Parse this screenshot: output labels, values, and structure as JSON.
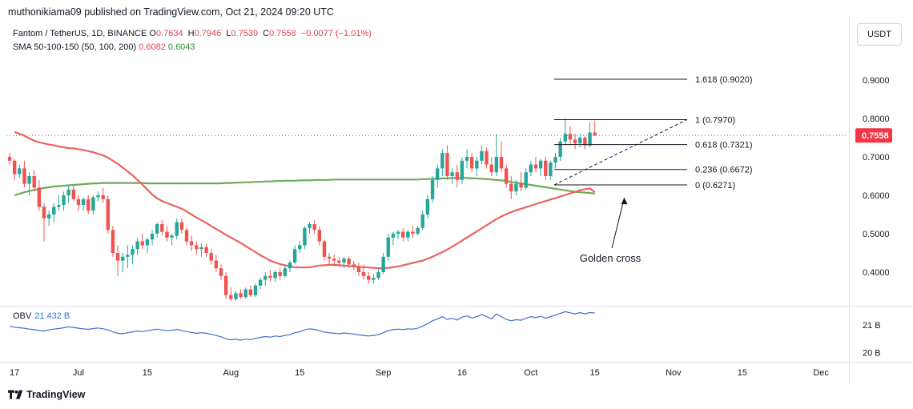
{
  "header": {
    "publisher_text": "muthonikiama09 published on TradingView.com, Oct 21, 2024 09:20 UTC"
  },
  "legend": {
    "symbol": "Fantom / TetherUS, 1D, BINANCE",
    "open_label": "O",
    "open": "0.7634",
    "high_label": "H",
    "high": "0.7946",
    "low_label": "L",
    "low": "0.7539",
    "close_label": "C",
    "close": "0.7558",
    "change": "−0.0077 (−1.01%)",
    "sma_label": "SMA 50-100-150 (50, 100, 200)",
    "sma_value_1": "0.6082",
    "sma_value_2": "0.6043"
  },
  "currency": "USDT",
  "obv": {
    "label": "OBV",
    "value": "21.432 B"
  },
  "footer": {
    "brand": "TradingView"
  },
  "colors": {
    "up": "#26a69a",
    "down": "#ef5350",
    "sma_red": "#e8645d",
    "sma_green": "#6dab5b",
    "obv": "#3d6fc9",
    "price_badge": "#f23645"
  },
  "chart_data": {
    "type": "candlestick",
    "title": "Fantom / TetherUS, 1D, BINANCE",
    "price_axis": {
      "min": 0.32,
      "max": 0.96,
      "ticks": [
        "0.9000",
        "0.8000",
        "0.7000",
        "0.6000",
        "0.5000",
        "0.4000"
      ],
      "tick_values": [
        0.9,
        0.8,
        0.7,
        0.6,
        0.5,
        0.4
      ]
    },
    "current_price_label": "0.7558",
    "current_price": 0.7558,
    "x_axis": {
      "labels": [
        "17",
        "Jul",
        "15",
        "Aug",
        "15",
        "Sep",
        "16",
        "Oct",
        "15",
        "Nov",
        "15",
        "Dec"
      ],
      "label_day_index": [
        1,
        14,
        28,
        45,
        59,
        76,
        92,
        106,
        119,
        135,
        149,
        165
      ]
    },
    "ohlc_note": "daily candles from ~Jun 16 to Oct 21 2024 (index 0 = Jun 16)",
    "candles": [
      [
        0.7,
        0.71,
        0.68,
        0.69
      ],
      [
        0.69,
        0.695,
        0.64,
        0.655
      ],
      [
        0.655,
        0.68,
        0.645,
        0.67
      ],
      [
        0.67,
        0.69,
        0.62,
        0.63
      ],
      [
        0.63,
        0.66,
        0.6,
        0.65
      ],
      [
        0.65,
        0.665,
        0.61,
        0.62
      ],
      [
        0.62,
        0.64,
        0.56,
        0.57
      ],
      [
        0.57,
        0.58,
        0.48,
        0.54
      ],
      [
        0.54,
        0.56,
        0.52,
        0.55
      ],
      [
        0.55,
        0.58,
        0.53,
        0.57
      ],
      [
        0.57,
        0.6,
        0.56,
        0.575
      ],
      [
        0.575,
        0.61,
        0.56,
        0.6
      ],
      [
        0.6,
        0.625,
        0.58,
        0.615
      ],
      [
        0.615,
        0.625,
        0.585,
        0.59
      ],
      [
        0.59,
        0.6,
        0.56,
        0.575
      ],
      [
        0.575,
        0.595,
        0.56,
        0.59
      ],
      [
        0.59,
        0.6,
        0.55,
        0.56
      ],
      [
        0.56,
        0.6,
        0.55,
        0.595
      ],
      [
        0.595,
        0.61,
        0.585,
        0.6
      ],
      [
        0.6,
        0.62,
        0.58,
        0.59
      ],
      [
        0.59,
        0.6,
        0.5,
        0.51
      ],
      [
        0.51,
        0.52,
        0.44,
        0.45
      ],
      [
        0.45,
        0.47,
        0.39,
        0.43
      ],
      [
        0.43,
        0.45,
        0.4,
        0.44
      ],
      [
        0.44,
        0.47,
        0.41,
        0.445
      ],
      [
        0.445,
        0.47,
        0.42,
        0.46
      ],
      [
        0.46,
        0.49,
        0.445,
        0.48
      ],
      [
        0.48,
        0.5,
        0.46,
        0.47
      ],
      [
        0.47,
        0.49,
        0.45,
        0.485
      ],
      [
        0.485,
        0.51,
        0.47,
        0.5
      ],
      [
        0.5,
        0.53,
        0.49,
        0.525
      ],
      [
        0.525,
        0.535,
        0.495,
        0.505
      ],
      [
        0.505,
        0.52,
        0.48,
        0.49
      ],
      [
        0.49,
        0.5,
        0.47,
        0.495
      ],
      [
        0.495,
        0.54,
        0.485,
        0.53
      ],
      [
        0.53,
        0.54,
        0.5,
        0.51
      ],
      [
        0.51,
        0.515,
        0.47,
        0.48
      ],
      [
        0.48,
        0.495,
        0.455,
        0.47
      ],
      [
        0.47,
        0.48,
        0.445,
        0.46
      ],
      [
        0.46,
        0.475,
        0.44,
        0.465
      ],
      [
        0.465,
        0.475,
        0.44,
        0.45
      ],
      [
        0.45,
        0.46,
        0.42,
        0.43
      ],
      [
        0.43,
        0.445,
        0.4,
        0.41
      ],
      [
        0.41,
        0.42,
        0.38,
        0.39
      ],
      [
        0.39,
        0.4,
        0.33,
        0.34
      ],
      [
        0.34,
        0.36,
        0.325,
        0.33
      ],
      [
        0.33,
        0.35,
        0.325,
        0.345
      ],
      [
        0.345,
        0.355,
        0.33,
        0.335
      ],
      [
        0.335,
        0.36,
        0.33,
        0.355
      ],
      [
        0.355,
        0.365,
        0.335,
        0.34
      ],
      [
        0.34,
        0.37,
        0.335,
        0.365
      ],
      [
        0.365,
        0.385,
        0.355,
        0.38
      ],
      [
        0.38,
        0.4,
        0.365,
        0.39
      ],
      [
        0.39,
        0.405,
        0.375,
        0.385
      ],
      [
        0.385,
        0.405,
        0.375,
        0.4
      ],
      [
        0.4,
        0.41,
        0.38,
        0.39
      ],
      [
        0.39,
        0.42,
        0.385,
        0.41
      ],
      [
        0.41,
        0.43,
        0.4,
        0.425
      ],
      [
        0.425,
        0.47,
        0.42,
        0.46
      ],
      [
        0.46,
        0.48,
        0.45,
        0.47
      ],
      [
        0.47,
        0.52,
        0.46,
        0.515
      ],
      [
        0.515,
        0.53,
        0.5,
        0.525
      ],
      [
        0.525,
        0.535,
        0.5,
        0.51
      ],
      [
        0.51,
        0.52,
        0.47,
        0.48
      ],
      [
        0.48,
        0.485,
        0.43,
        0.44
      ],
      [
        0.44,
        0.45,
        0.42,
        0.435
      ],
      [
        0.435,
        0.445,
        0.415,
        0.43
      ],
      [
        0.43,
        0.44,
        0.415,
        0.425
      ],
      [
        0.425,
        0.44,
        0.41,
        0.435
      ],
      [
        0.435,
        0.44,
        0.41,
        0.42
      ],
      [
        0.42,
        0.43,
        0.405,
        0.415
      ],
      [
        0.415,
        0.425,
        0.39,
        0.4
      ],
      [
        0.4,
        0.42,
        0.38,
        0.39
      ],
      [
        0.39,
        0.4,
        0.37,
        0.38
      ],
      [
        0.38,
        0.395,
        0.37,
        0.385
      ],
      [
        0.385,
        0.41,
        0.38,
        0.4
      ],
      [
        0.4,
        0.45,
        0.395,
        0.44
      ],
      [
        0.44,
        0.5,
        0.43,
        0.49
      ],
      [
        0.49,
        0.505,
        0.47,
        0.5
      ],
      [
        0.5,
        0.51,
        0.485,
        0.505
      ],
      [
        0.505,
        0.515,
        0.48,
        0.49
      ],
      [
        0.49,
        0.51,
        0.48,
        0.505
      ],
      [
        0.505,
        0.52,
        0.49,
        0.5
      ],
      [
        0.5,
        0.52,
        0.495,
        0.515
      ],
      [
        0.515,
        0.56,
        0.51,
        0.55
      ],
      [
        0.55,
        0.6,
        0.54,
        0.59
      ],
      [
        0.59,
        0.65,
        0.58,
        0.64
      ],
      [
        0.64,
        0.68,
        0.62,
        0.67
      ],
      [
        0.67,
        0.72,
        0.65,
        0.71
      ],
      [
        0.71,
        0.73,
        0.64,
        0.65
      ],
      [
        0.65,
        0.67,
        0.63,
        0.66
      ],
      [
        0.66,
        0.68,
        0.62,
        0.64
      ],
      [
        0.64,
        0.7,
        0.63,
        0.69
      ],
      [
        0.69,
        0.72,
        0.67,
        0.7
      ],
      [
        0.7,
        0.71,
        0.66,
        0.67
      ],
      [
        0.67,
        0.7,
        0.65,
        0.69
      ],
      [
        0.69,
        0.73,
        0.68,
        0.715
      ],
      [
        0.715,
        0.725,
        0.67,
        0.68
      ],
      [
        0.68,
        0.7,
        0.65,
        0.66
      ],
      [
        0.66,
        0.76,
        0.65,
        0.7
      ],
      [
        0.7,
        0.74,
        0.66,
        0.67
      ],
      [
        0.67,
        0.68,
        0.62,
        0.63
      ],
      [
        0.63,
        0.65,
        0.59,
        0.61
      ],
      [
        0.61,
        0.64,
        0.6,
        0.63
      ],
      [
        0.63,
        0.66,
        0.61,
        0.62
      ],
      [
        0.62,
        0.67,
        0.615,
        0.66
      ],
      [
        0.66,
        0.69,
        0.65,
        0.68
      ],
      [
        0.68,
        0.7,
        0.66,
        0.67
      ],
      [
        0.67,
        0.695,
        0.65,
        0.69
      ],
      [
        0.69,
        0.7,
        0.64,
        0.65
      ],
      [
        0.65,
        0.69,
        0.64,
        0.685
      ],
      [
        0.685,
        0.71,
        0.67,
        0.7
      ],
      [
        0.7,
        0.75,
        0.69,
        0.74
      ],
      [
        0.74,
        0.8,
        0.73,
        0.76
      ],
      [
        0.76,
        0.78,
        0.73,
        0.745
      ],
      [
        0.745,
        0.76,
        0.72,
        0.735
      ],
      [
        0.735,
        0.76,
        0.725,
        0.75
      ],
      [
        0.75,
        0.755,
        0.72,
        0.73
      ],
      [
        0.73,
        0.79,
        0.725,
        0.7634
      ],
      [
        0.7634,
        0.7946,
        0.7539,
        0.7558
      ]
    ],
    "sma_50": [
      0.765,
      0.76,
      0.755,
      0.748,
      0.742,
      0.738,
      0.735,
      0.732,
      0.73,
      0.727,
      0.725,
      0.723,
      0.722,
      0.72,
      0.718,
      0.715,
      0.712,
      0.708,
      0.704,
      0.698,
      0.69,
      0.682,
      0.672,
      0.662,
      0.652,
      0.64,
      0.628,
      0.615,
      0.602,
      0.592,
      0.585,
      0.58,
      0.575,
      0.57,
      0.565,
      0.558,
      0.55,
      0.542,
      0.535,
      0.528,
      0.52,
      0.512,
      0.505,
      0.497,
      0.49,
      0.483,
      0.476,
      0.468,
      0.46,
      0.452,
      0.444,
      0.437,
      0.43,
      0.425,
      0.421,
      0.418,
      0.415,
      0.413,
      0.412,
      0.412,
      0.413,
      0.415,
      0.417,
      0.418,
      0.419,
      0.419,
      0.418,
      0.417,
      0.416,
      0.415,
      0.414,
      0.413,
      0.412,
      0.411,
      0.41,
      0.41,
      0.411,
      0.413,
      0.415,
      0.418,
      0.421,
      0.424,
      0.427,
      0.43,
      0.435,
      0.44,
      0.446,
      0.452,
      0.459,
      0.466,
      0.474,
      0.482,
      0.49,
      0.498,
      0.506,
      0.514,
      0.522,
      0.53,
      0.538,
      0.545,
      0.551,
      0.556,
      0.561,
      0.565,
      0.569,
      0.573,
      0.577,
      0.581,
      0.585,
      0.589,
      0.593,
      0.597,
      0.601,
      0.605,
      0.609,
      0.613,
      0.616,
      0.618,
      0.6082
    ],
    "sma_200": [
      0.6,
      0.604,
      0.608,
      0.611,
      0.614,
      0.617,
      0.619,
      0.621,
      0.623,
      0.624,
      0.625,
      0.626,
      0.627,
      0.628,
      0.629,
      0.63,
      0.631,
      0.631,
      0.632,
      0.632,
      0.632,
      0.632,
      0.632,
      0.632,
      0.632,
      0.632,
      0.632,
      0.631,
      0.631,
      0.631,
      0.631,
      0.631,
      0.631,
      0.631,
      0.631,
      0.631,
      0.631,
      0.631,
      0.631,
      0.631,
      0.631,
      0.631,
      0.631,
      0.632,
      0.632,
      0.633,
      0.633,
      0.634,
      0.634,
      0.635,
      0.635,
      0.636,
      0.636,
      0.637,
      0.637,
      0.638,
      0.638,
      0.638,
      0.639,
      0.639,
      0.639,
      0.64,
      0.64,
      0.64,
      0.64,
      0.641,
      0.641,
      0.641,
      0.641,
      0.641,
      0.641,
      0.641,
      0.641,
      0.641,
      0.641,
      0.641,
      0.641,
      0.641,
      0.641,
      0.641,
      0.641,
      0.641,
      0.641,
      0.642,
      0.642,
      0.643,
      0.643,
      0.644,
      0.644,
      0.645,
      0.645,
      0.645,
      0.645,
      0.644,
      0.644,
      0.643,
      0.642,
      0.641,
      0.64,
      0.639,
      0.637,
      0.635,
      0.633,
      0.631,
      0.629,
      0.627,
      0.625,
      0.623,
      0.621,
      0.619,
      0.617,
      0.615,
      0.613,
      0.611,
      0.609,
      0.608,
      0.607,
      0.606,
      0.6043
    ],
    "fibonacci": [
      {
        "label": "1.618 (0.9020)",
        "value": 0.902
      },
      {
        "label": "1 (0.7970)",
        "value": 0.797
      },
      {
        "label": "0.618 (0.7321)",
        "value": 0.7321
      },
      {
        "label": "0.236 (0.6672)",
        "value": 0.6672
      },
      {
        "label": "0 (0.6271)",
        "value": 0.6271
      }
    ],
    "annotation": {
      "text": "Golden cross",
      "target_day_index": 125,
      "target_value": 0.606
    },
    "obv_axis": {
      "ticks": [
        "21 B",
        "20 B"
      ],
      "tick_values": [
        21.0,
        20.0
      ],
      "min": 19.7,
      "max": 21.6
    },
    "obv_series": [
      20.95,
      20.92,
      20.9,
      20.88,
      20.85,
      20.83,
      20.8,
      20.78,
      20.82,
      20.85,
      20.87,
      20.9,
      20.93,
      20.91,
      20.88,
      20.86,
      20.84,
      20.87,
      20.89,
      20.86,
      20.82,
      20.75,
      20.7,
      20.68,
      20.72,
      20.75,
      20.78,
      20.76,
      20.79,
      20.82,
      20.85,
      20.82,
      20.79,
      20.81,
      20.84,
      20.8,
      20.76,
      20.73,
      20.7,
      20.72,
      20.7,
      20.66,
      20.62,
      20.57,
      20.5,
      20.46,
      20.48,
      20.45,
      20.49,
      20.47,
      20.51,
      20.55,
      20.58,
      20.56,
      20.6,
      20.58,
      20.62,
      20.65,
      20.72,
      20.75,
      20.82,
      20.86,
      20.84,
      20.8,
      20.74,
      20.72,
      20.7,
      20.68,
      20.71,
      20.69,
      20.67,
      20.64,
      20.62,
      20.6,
      20.62,
      20.65,
      20.72,
      20.8,
      20.83,
      20.85,
      20.83,
      20.86,
      20.85,
      20.88,
      20.96,
      21.05,
      21.15,
      21.22,
      21.3,
      21.2,
      21.24,
      21.18,
      21.28,
      21.33,
      21.25,
      21.3,
      21.38,
      21.3,
      21.22,
      21.4,
      21.3,
      21.2,
      21.15,
      21.19,
      21.17,
      21.24,
      21.3,
      21.27,
      21.32,
      21.24,
      21.3,
      21.35,
      21.42,
      21.48,
      21.44,
      21.4,
      21.45,
      21.4,
      21.45,
      21.432
    ]
  }
}
